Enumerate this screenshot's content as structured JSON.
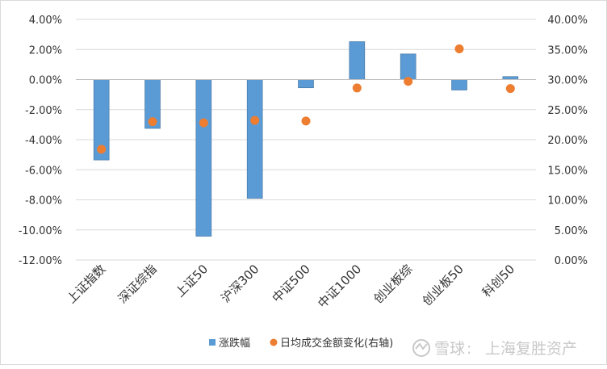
{
  "chart_data": {
    "type": "bar",
    "title": "",
    "categories": [
      "上证指数",
      "深证综指",
      "上证50",
      "沪深300",
      "中证500",
      "中证1000",
      "创业板综",
      "创业板50",
      "科创50"
    ],
    "series": [
      {
        "name": "涨跌幅",
        "kind": "bar",
        "axis": "left",
        "color": "#5b9bd5",
        "values": [
          -5.35,
          -3.25,
          -10.42,
          -7.9,
          -0.55,
          2.52,
          1.7,
          -0.7,
          0.2
        ]
      },
      {
        "name": "日均成交金额变化(右轴)",
        "kind": "scatter",
        "axis": "right",
        "color": "#ed7d31",
        "values": [
          18.4,
          23.0,
          22.8,
          23.2,
          23.1,
          28.6,
          29.7,
          35.1,
          28.5
        ]
      }
    ],
    "y_left": {
      "min": -12,
      "max": 4,
      "step": 2,
      "ticks": [
        "4.00%",
        "2.00%",
        "0.00%",
        "-2.00%",
        "-4.00%",
        "-6.00%",
        "-8.00%",
        "-10.00%",
        "-12.00%"
      ]
    },
    "y_right": {
      "min": 0,
      "max": 40,
      "step": 5,
      "ticks": [
        "40.00%",
        "35.00%",
        "30.00%",
        "25.00%",
        "20.00%",
        "15.00%",
        "10.00%",
        "5.00%",
        "0.00%"
      ]
    },
    "legend": {
      "position": "bottom",
      "bar_label": "涨跌幅",
      "dot_label": "日均成交金额变化(右轴)"
    },
    "grid": true
  },
  "watermark": {
    "brand": "雪球",
    "separator": ":",
    "author": "上海复胜资产"
  }
}
